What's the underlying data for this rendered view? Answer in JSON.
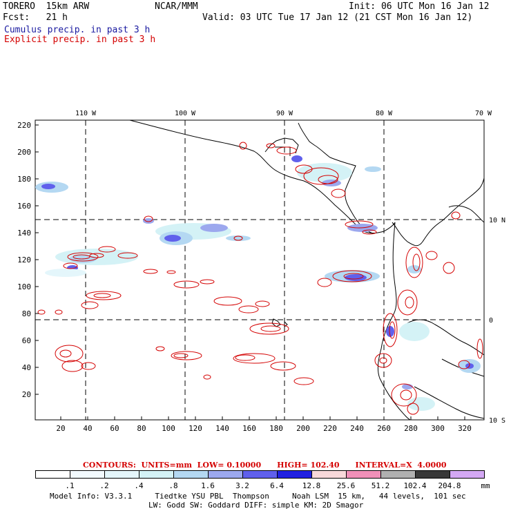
{
  "header": {
    "model": "TORERO  15km ARW",
    "org": "NCAR/MMM",
    "init": "Init: 06 UTC Mon 16 Jan 12",
    "fcst": "Fcst:   21 h",
    "valid": "Valid: 03 UTC Tue 17 Jan 12 (21 CST Mon 16 Jan 12)",
    "legend_cumulus": "Cumulus precip. in past 3 h",
    "legend_explicit": "Explicit precip. in past 3 h"
  },
  "map": {
    "lon_labels": [
      "110 W",
      "100 W",
      "90 W",
      "80 W",
      "70 W"
    ],
    "lat_labels": [
      "10 N",
      "0",
      "10 S"
    ],
    "y_ticks": [
      "220",
      "200",
      "180",
      "160",
      "140",
      "120",
      "100",
      "80",
      "60",
      "40",
      "20"
    ],
    "x_ticks": [
      "20",
      "40",
      "60",
      "80",
      "100",
      "120",
      "140",
      "160",
      "180",
      "200",
      "220",
      "240",
      "260",
      "280",
      "300",
      "320"
    ]
  },
  "contour_info": {
    "label": "CONTOURS:  UNITS=mm  LOW= 0.10000      HIGH= 102.40      INTERVAL=X  4.0000"
  },
  "colorbar": {
    "labels": [
      ".1",
      ".2",
      ".4",
      ".8",
      "1.6",
      "3.2",
      "6.4",
      "12.8",
      "25.6",
      "51.2",
      "102.4",
      "204.8"
    ],
    "unit": "mm",
    "colors": [
      "#ffffff",
      "#f2fafe",
      "#e4f6fb",
      "#d4f2f6",
      "#b4d8f2",
      "#9ca8ee",
      "#6060ec",
      "#2020e0",
      "#f8d8da",
      "#f090b8",
      "#b0b0b0",
      "#383838",
      "#d4a8f4"
    ]
  },
  "footer": {
    "line1": "Model Info: V3.3.1     Tiedtke YSU PBL  Thompson     Noah LSM  15 km,   44 levels,  101 sec",
    "line2": "LW: Godd SW: Goddard DIFF: simple KM: 2D Smagor"
  }
}
